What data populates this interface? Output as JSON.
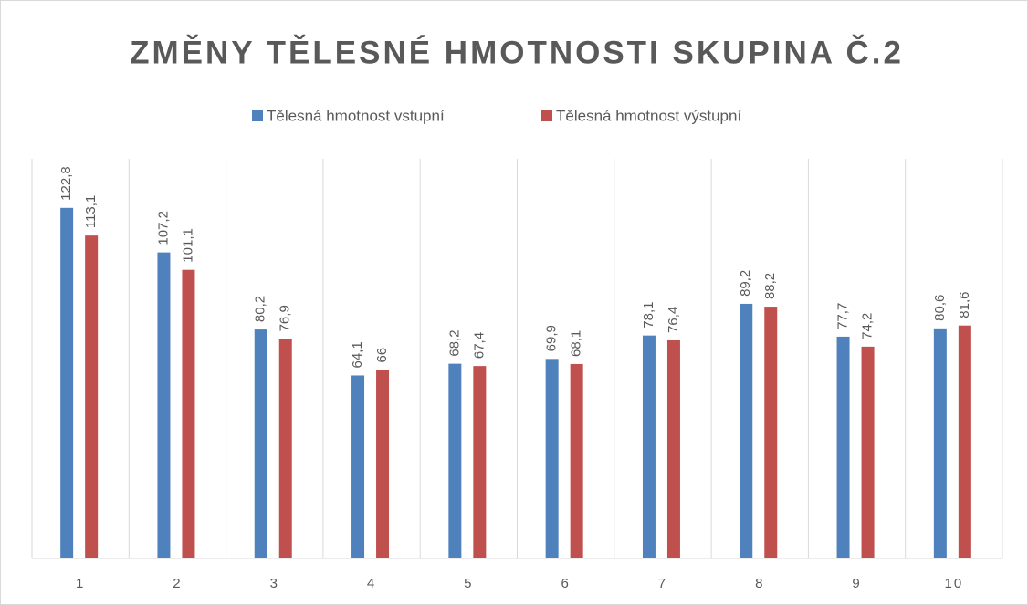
{
  "chart_data": {
    "type": "bar",
    "title": "ZMĚNY TĚLESNÉ HMOTNOSTI SKUPINA Č.2",
    "categories": [
      "1",
      "2",
      "3",
      "4",
      "5",
      "6",
      "7",
      "8",
      "9",
      "10"
    ],
    "series": [
      {
        "name": "Tělesná hmotnost vstupní",
        "color": "#4f81bd",
        "values": [
          122.8,
          107.2,
          80.2,
          64.1,
          68.2,
          69.9,
          78.1,
          89.2,
          77.7,
          80.6
        ],
        "value_labels": [
          "122,8",
          "107,2",
          "80,2",
          "64,1",
          "68,2",
          "69,9",
          "78,1",
          "89,2",
          "77,7",
          "80,6"
        ]
      },
      {
        "name": "Tělesná hmotnost výstupní",
        "color": "#c0504d",
        "values": [
          113.1,
          101.1,
          76.9,
          66,
          67.4,
          68.1,
          76.4,
          88.2,
          74.2,
          81.6
        ],
        "value_labels": [
          "113,1",
          "101,1",
          "76,9",
          "66",
          "67,4",
          "68,1",
          "76,4",
          "88,2",
          "74,2",
          "81,6"
        ]
      }
    ],
    "ylim": [
      0,
      140
    ]
  }
}
